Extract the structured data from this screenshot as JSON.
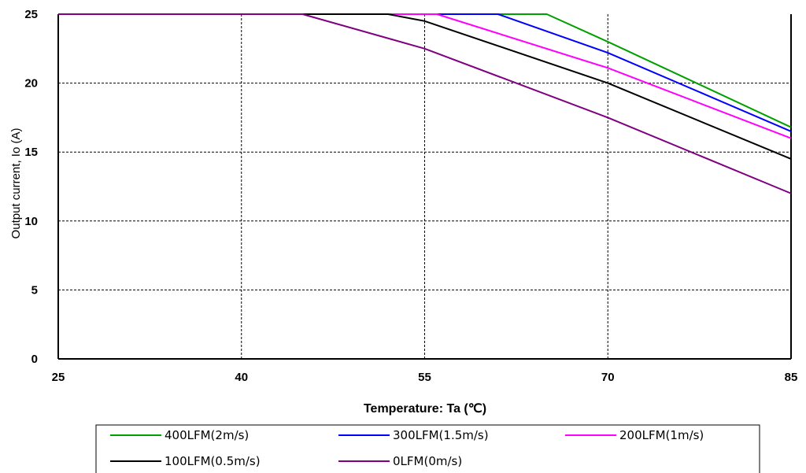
{
  "chart_data": {
    "type": "line",
    "xlabel": "Temperature:  Ta (℃)",
    "ylabel": "Output current, Io (A)",
    "xlim": [
      25,
      85
    ],
    "ylim": [
      0,
      25
    ],
    "x_ticks": [
      "25",
      "40",
      "55",
      "70",
      "85"
    ],
    "y_ticks": [
      "0",
      "5",
      "10",
      "15",
      "20",
      "25"
    ],
    "grid": true,
    "legend_position": "bottom",
    "series": [
      {
        "name": "400LFM(2m/s)",
        "color": "#00a000",
        "x": [
          25,
          65,
          70,
          85
        ],
        "y": [
          25,
          25,
          23,
          16.8
        ]
      },
      {
        "name": "300LFM(1.5m/s)",
        "color": "#0000ff",
        "x": [
          25,
          61,
          70,
          85
        ],
        "y": [
          25,
          25,
          22.2,
          16.5
        ]
      },
      {
        "name": "200LFM(1m/s)",
        "color": "#ff00ff",
        "x": [
          25,
          56,
          70,
          85
        ],
        "y": [
          25,
          25,
          21.1,
          16
        ]
      },
      {
        "name": "100LFM(0.5m/s)",
        "color": "#000000",
        "x": [
          25,
          52,
          55,
          70,
          85
        ],
        "y": [
          25,
          25,
          24.5,
          20,
          14.5
        ]
      },
      {
        "name": "0LFM(0m/s)",
        "color": "#800080",
        "x": [
          25,
          45,
          55,
          70,
          85
        ],
        "y": [
          25,
          25,
          22.5,
          17.5,
          12
        ]
      }
    ]
  }
}
